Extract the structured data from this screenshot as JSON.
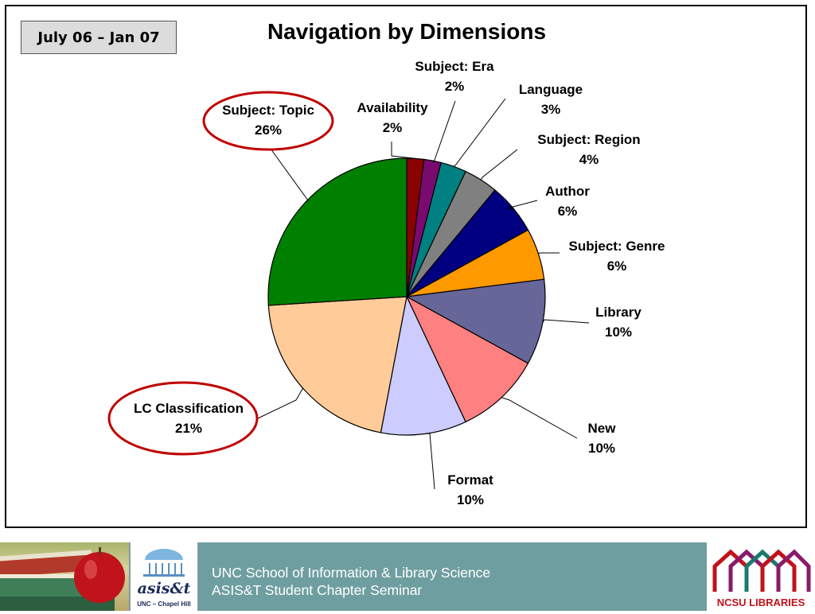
{
  "date_range": "July 06 – Jan 07",
  "chart_data": {
    "type": "pie",
    "title": "Navigation by Dimensions",
    "slices": [
      {
        "label": "Availability",
        "value": 2,
        "display": "2%",
        "color": "#8b0000"
      },
      {
        "label": "Subject: Era",
        "value": 2,
        "display": "2%",
        "color": "#7a0a70"
      },
      {
        "label": "Language",
        "value": 3,
        "display": "3%",
        "color": "#008080"
      },
      {
        "label": "Subject: Region",
        "value": 4,
        "display": "4%",
        "color": "#808080"
      },
      {
        "label": "Author",
        "value": 6,
        "display": "6%",
        "color": "#000080"
      },
      {
        "label": "Subject: Genre",
        "value": 6,
        "display": "6%",
        "color": "#ff9900"
      },
      {
        "label": "Library",
        "value": 10,
        "display": "10%",
        "color": "#666699"
      },
      {
        "label": "New",
        "value": 10,
        "display": "10%",
        "color": "#ff8080"
      },
      {
        "label": "Format",
        "value": 10,
        "display": "10%",
        "color": "#ccccff"
      },
      {
        "label": "LC Classification",
        "value": 21,
        "display": "21%",
        "color": "#ffcc99"
      },
      {
        "label": "Subject: Topic",
        "value": 26,
        "display": "26%",
        "color": "#008000"
      }
    ],
    "highlighted": [
      "Subject: Topic",
      "LC Classification"
    ],
    "highlight_color": "#c00000"
  },
  "footer": {
    "line1": "UNC School of Information & Library Science",
    "line2": "ASIS&T Student Chapter Seminar",
    "asist_logo_text": "asis&t",
    "asist_sub_text": "UNC – Chapel Hill",
    "ncsu_logo_text": "NCSU LIBRARIES"
  }
}
